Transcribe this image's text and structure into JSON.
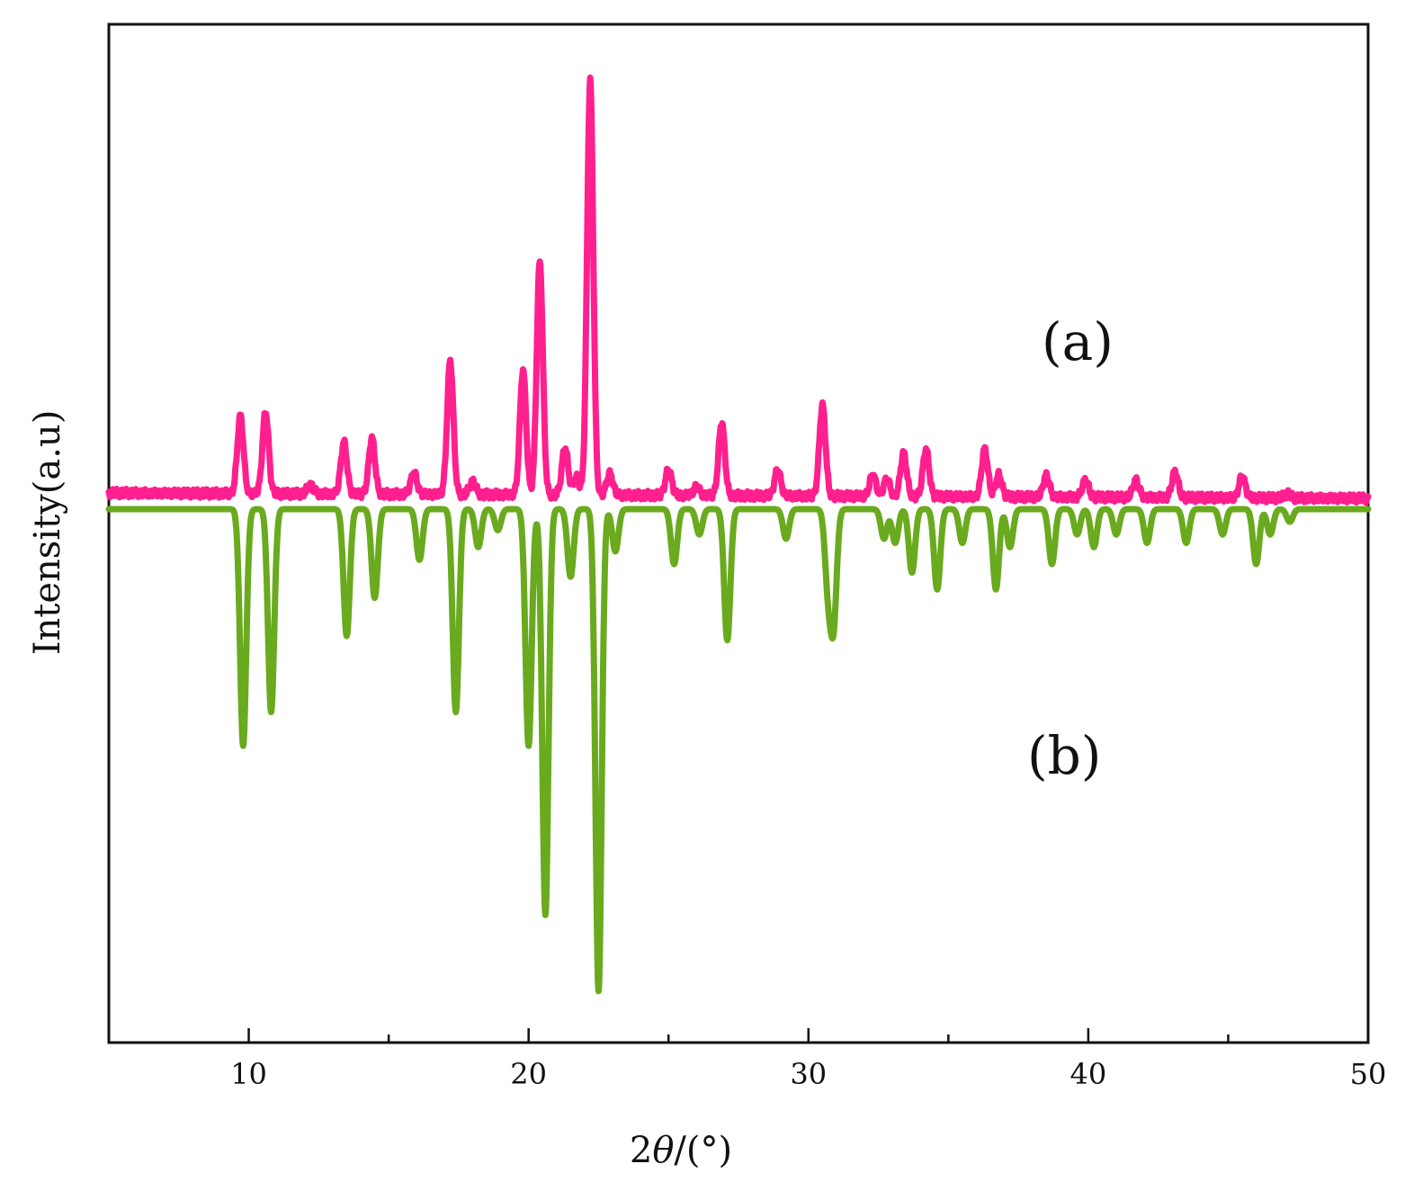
{
  "chart_data": {
    "type": "line",
    "xlabel_prefix": "2",
    "xlabel_theta": "θ",
    "xlabel_suffix": "/(°)",
    "ylabel": "Intensity(a.u)",
    "xlim": [
      5,
      50
    ],
    "x_ticks": [
      10,
      20,
      30,
      40,
      50
    ],
    "y_ticks_shown": false,
    "grid": false,
    "annotations": [
      {
        "text": "(a)",
        "series": "a"
      },
      {
        "text": "(b)",
        "series": "b"
      }
    ],
    "series": [
      {
        "id": "a",
        "color": "#ff1f8e",
        "direction": "up",
        "baseline": 0.02,
        "peaks": [
          [
            9.7,
            0.18
          ],
          [
            10.6,
            0.19
          ],
          [
            12.2,
            0.02
          ],
          [
            13.4,
            0.12
          ],
          [
            14.4,
            0.13
          ],
          [
            15.9,
            0.05
          ],
          [
            17.2,
            0.31
          ],
          [
            18.0,
            0.03
          ],
          [
            19.8,
            0.29
          ],
          [
            20.4,
            0.54
          ],
          [
            21.3,
            0.11
          ],
          [
            21.7,
            0.04
          ],
          [
            22.2,
            0.96
          ],
          [
            22.9,
            0.05
          ],
          [
            25.0,
            0.06
          ],
          [
            26.0,
            0.02
          ],
          [
            26.9,
            0.17
          ],
          [
            28.9,
            0.06
          ],
          [
            30.5,
            0.21
          ],
          [
            32.3,
            0.05
          ],
          [
            32.8,
            0.04
          ],
          [
            33.4,
            0.1
          ],
          [
            34.2,
            0.11
          ],
          [
            36.3,
            0.11
          ],
          [
            36.8,
            0.05
          ],
          [
            38.5,
            0.05
          ],
          [
            39.9,
            0.04
          ],
          [
            41.7,
            0.04
          ],
          [
            43.1,
            0.06
          ],
          [
            45.5,
            0.05
          ],
          [
            47.1,
            0.01
          ]
        ]
      },
      {
        "id": "b",
        "color": "#6aaa1e",
        "direction": "down",
        "baseline": 0.0,
        "peaks": [
          [
            9.8,
            0.56
          ],
          [
            10.8,
            0.48
          ],
          [
            13.5,
            0.3
          ],
          [
            14.5,
            0.21
          ],
          [
            16.1,
            0.12
          ],
          [
            17.4,
            0.48
          ],
          [
            18.2,
            0.09
          ],
          [
            18.9,
            0.05
          ],
          [
            20.0,
            0.56
          ],
          [
            20.6,
            0.96
          ],
          [
            21.5,
            0.16
          ],
          [
            22.5,
            1.14
          ],
          [
            23.1,
            0.1
          ],
          [
            25.2,
            0.13
          ],
          [
            26.1,
            0.06
          ],
          [
            27.1,
            0.31
          ],
          [
            29.2,
            0.07
          ],
          [
            30.7,
            0.18
          ],
          [
            30.9,
            0.26
          ],
          [
            32.7,
            0.07
          ],
          [
            33.1,
            0.08
          ],
          [
            33.7,
            0.15
          ],
          [
            34.6,
            0.19
          ],
          [
            35.5,
            0.08
          ],
          [
            36.7,
            0.19
          ],
          [
            37.2,
            0.09
          ],
          [
            38.7,
            0.13
          ],
          [
            39.6,
            0.06
          ],
          [
            40.2,
            0.09
          ],
          [
            41.0,
            0.06
          ],
          [
            42.1,
            0.08
          ],
          [
            43.5,
            0.08
          ],
          [
            44.8,
            0.06
          ],
          [
            46.0,
            0.13
          ],
          [
            46.5,
            0.06
          ],
          [
            47.2,
            0.03
          ]
        ]
      }
    ]
  }
}
